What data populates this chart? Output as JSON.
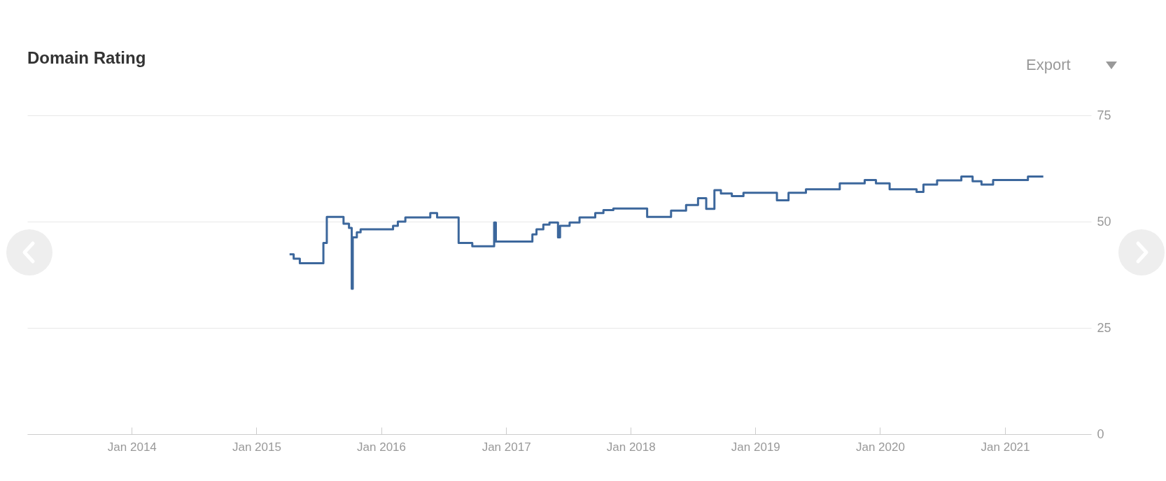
{
  "chart_data": {
    "type": "step",
    "title": "Domain Rating",
    "annotations": [
      "Export"
    ],
    "x": [
      "2015-04-08",
      "2015-04-20",
      "2015-05-08",
      "2015-07-16",
      "2015-07-26",
      "2015-09-13",
      "2015-09-29",
      "2015-10-07",
      "2015-10-10",
      "2015-10-22",
      "2015-11-02",
      "2016-02-05",
      "2016-02-19",
      "2016-03-12",
      "2016-05-24",
      "2016-06-13",
      "2016-08-15",
      "2016-09-24",
      "2016-11-27",
      "2016-12-02",
      "2017-03-19",
      "2017-03-31",
      "2017-04-20",
      "2017-05-08",
      "2017-06-02",
      "2017-06-08",
      "2017-07-06",
      "2017-08-04",
      "2017-09-19",
      "2017-10-13",
      "2017-11-11",
      "2018-02-18",
      "2018-04-29",
      "2018-06-12",
      "2018-07-17",
      "2018-08-10",
      "2018-09-03",
      "2018-09-22",
      "2018-10-24",
      "2018-11-27",
      "2019-03-05",
      "2019-04-08",
      "2019-05-29",
      "2019-09-05",
      "2019-11-17",
      "2019-12-20",
      "2020-01-29",
      "2020-04-17",
      "2020-05-07",
      "2020-06-16",
      "2020-08-26",
      "2020-09-28",
      "2020-10-24",
      "2020-11-27",
      "2021-03-09",
      "2021-04-23"
    ],
    "series": [
      {
        "color": "#3c679c",
        "values": [
          42.3,
          41.3,
          40.2,
          45,
          51.1,
          49.5,
          48.5,
          34.2,
          46.3,
          47.5,
          48.2,
          49,
          50,
          51,
          52,
          51,
          45,
          44.2,
          49.8,
          45.3,
          47,
          48.2,
          49.3,
          49.8,
          46.3,
          49,
          49.8,
          51,
          52,
          52.7,
          53.1,
          51.1,
          52.6,
          53.9,
          55.5,
          53,
          57.4,
          56.6,
          56,
          56.8,
          55,
          56.8,
          57.6,
          59,
          59.8,
          59,
          57.6,
          57,
          58.7,
          59.7,
          60.6,
          59.5,
          58.7,
          59.8,
          60.6,
          60.6
        ]
      }
    ],
    "xlim": [
      "2013-03-01",
      "2021-09-10"
    ],
    "xticks": [
      {
        "value": "2014-01",
        "label": "Jan 2014"
      },
      {
        "value": "2015-01",
        "label": "Jan 2015"
      },
      {
        "value": "2016-01",
        "label": "Jan 2016"
      },
      {
        "value": "2017-01",
        "label": "Jan 2017"
      },
      {
        "value": "2018-01",
        "label": "Jan 2018"
      },
      {
        "value": "2019-01",
        "label": "Jan 2019"
      },
      {
        "value": "2020-01",
        "label": "Jan 2020"
      },
      {
        "value": "2021-01",
        "label": "Jan 2021"
      }
    ],
    "ylim": [
      0,
      75
    ],
    "yticks": [
      0,
      25,
      50,
      75
    ],
    "grid": "y",
    "line_style": "solid"
  }
}
